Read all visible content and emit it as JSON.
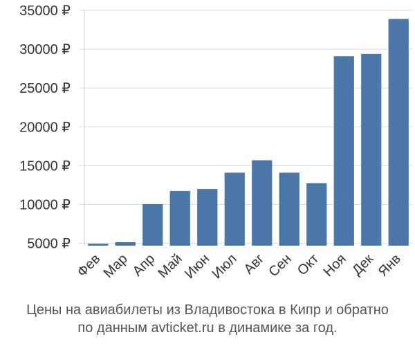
{
  "chart_data": {
    "type": "bar",
    "categories": [
      "Фев",
      "Мар",
      "Апр",
      "Май",
      "Июн",
      "Июл",
      "Авг",
      "Сен",
      "Окт",
      "Ноя",
      "Дек",
      "Янв"
    ],
    "values": [
      4950,
      5150,
      10050,
      11750,
      12000,
      14100,
      15700,
      14100,
      12750,
      29100,
      29400,
      33900
    ],
    "ylim": [
      4700,
      35000
    ],
    "yticks": [
      5000,
      10000,
      15000,
      20000,
      25000,
      30000,
      35000
    ],
    "ytick_labels": [
      "5000 ₽",
      "10000 ₽",
      "15000 ₽",
      "20000 ₽",
      "25000 ₽",
      "30000 ₽",
      "35000 ₽"
    ],
    "bar_color": "#4a76a8",
    "grid": "horizontal",
    "legend": "none"
  },
  "caption": {
    "line1": "Цены на авиабилеты из Владивостока в Кипр и обратно",
    "line2": "по данным avticket.ru в динамике за год."
  }
}
